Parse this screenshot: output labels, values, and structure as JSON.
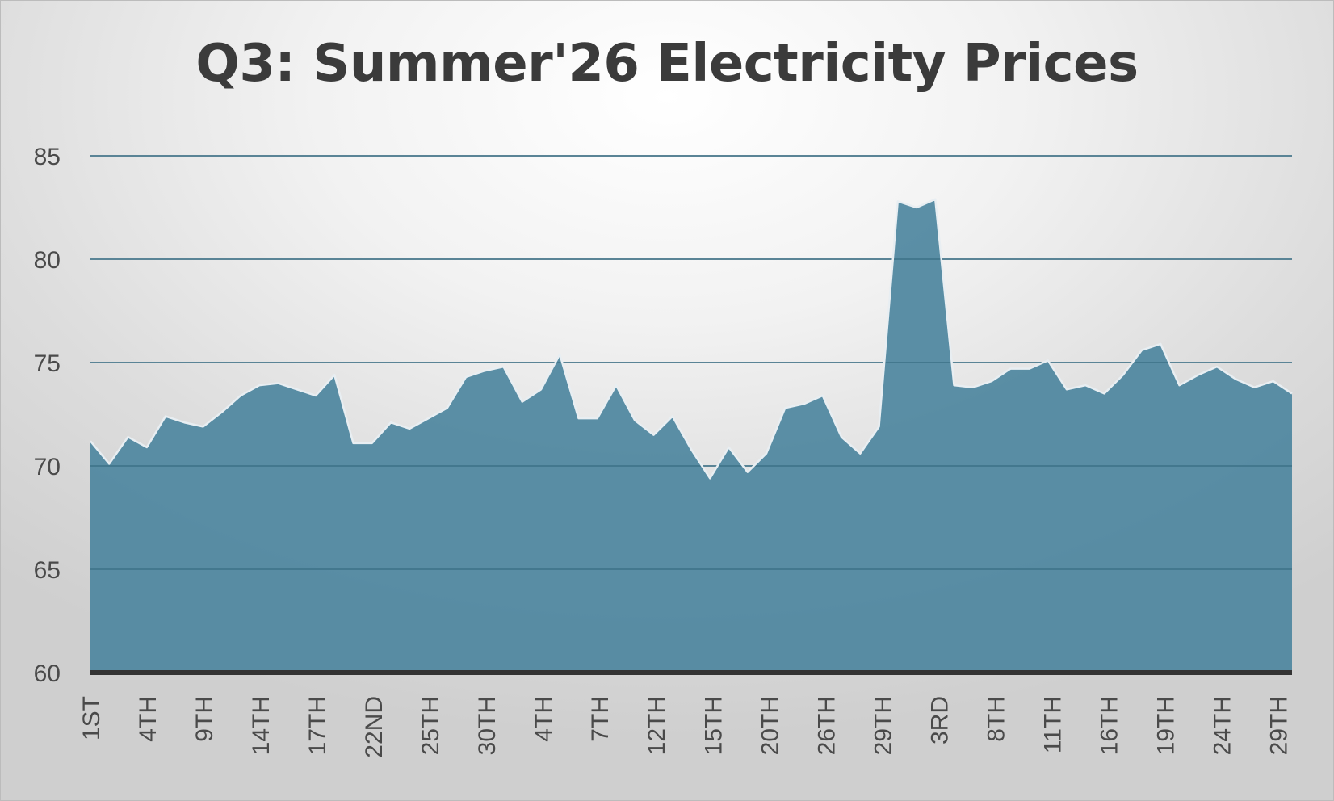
{
  "chart_data": {
    "type": "area",
    "title": "Q3: Summer'26 Electricity Prices",
    "xlabel": "",
    "ylabel": "",
    "ylim": [
      60,
      85
    ],
    "y_ticks": [
      60,
      65,
      70,
      75,
      80,
      85
    ],
    "grid": true,
    "legend": "none",
    "colors": {
      "area": "#4f869f",
      "line": "#e8eef2",
      "axis": "#333333",
      "grid": "#c8c8c8"
    },
    "x_tick_labels": [
      "1ST",
      "4TH",
      "9TH",
      "14TH",
      "17TH",
      "22ND",
      "25TH",
      "30TH",
      "4TH",
      "7TH",
      "12TH",
      "15TH",
      "20TH",
      "26TH",
      "29TH",
      "3RD",
      "8TH",
      "11TH",
      "16TH",
      "19TH",
      "24TH",
      "29TH"
    ],
    "series": [
      {
        "values": [
          71.2,
          70.1,
          71.4,
          70.9,
          72.4,
          72.1,
          71.9,
          72.6,
          73.4,
          73.9,
          74.0,
          73.7,
          73.4,
          74.4,
          71.1,
          71.1,
          72.1,
          71.8,
          72.3,
          72.8,
          74.3,
          74.6,
          74.8,
          73.1,
          73.7,
          75.4,
          72.3,
          72.3,
          73.9,
          72.2,
          71.5,
          72.4,
          70.8,
          69.4,
          70.9,
          69.7,
          70.6,
          72.8,
          73.0,
          73.4,
          71.4,
          70.6,
          71.9,
          82.8,
          82.5,
          82.9,
          73.9,
          73.8,
          74.1,
          74.7,
          74.7,
          75.1,
          73.7,
          73.9,
          73.5,
          74.4,
          75.6,
          75.9,
          73.9,
          74.4,
          74.8,
          74.2,
          73.8,
          74.1,
          73.5
        ]
      }
    ]
  }
}
